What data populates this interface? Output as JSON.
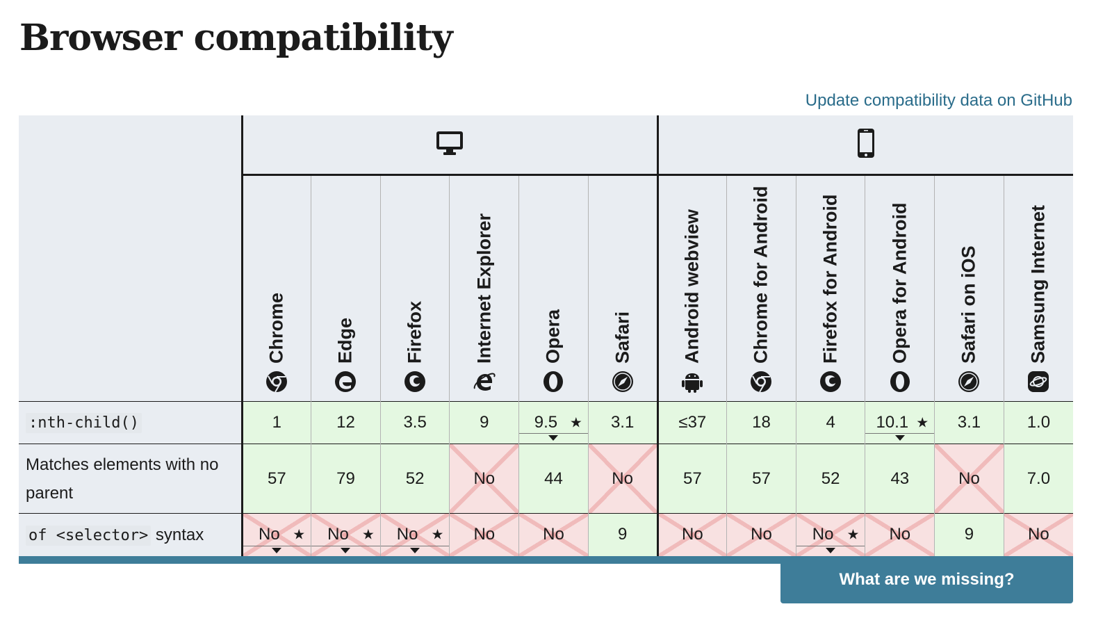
{
  "page_title": "Browser compatibility",
  "github_link": "Update compatibility data on GitHub",
  "platforms": [
    {
      "name": "desktop",
      "icon": "desktop-icon"
    },
    {
      "name": "mobile",
      "icon": "mobile-icon"
    }
  ],
  "browsers": [
    {
      "name": "Chrome",
      "icon": "chrome-icon"
    },
    {
      "name": "Edge",
      "icon": "edge-icon"
    },
    {
      "name": "Firefox",
      "icon": "firefox-icon"
    },
    {
      "name": "Internet Explorer",
      "icon": "ie-icon"
    },
    {
      "name": "Opera",
      "icon": "opera-icon"
    },
    {
      "name": "Safari",
      "icon": "safari-icon"
    },
    {
      "name": "Android webview",
      "icon": "android-icon"
    },
    {
      "name": "Chrome for Android",
      "icon": "chrome-icon"
    },
    {
      "name": "Firefox for Android",
      "icon": "firefox-icon"
    },
    {
      "name": "Opera for Android",
      "icon": "opera-icon"
    },
    {
      "name": "Safari on iOS",
      "icon": "safari-icon"
    },
    {
      "name": "Samsung Internet",
      "icon": "samsung-icon"
    }
  ],
  "rows": [
    {
      "feature_code": ":nth-child()",
      "feature_text": "",
      "cells": [
        {
          "v": "1",
          "s": "yes"
        },
        {
          "v": "12",
          "s": "yes"
        },
        {
          "v": "3.5",
          "s": "yes"
        },
        {
          "v": "9",
          "s": "yes"
        },
        {
          "v": "9.5",
          "s": "yes",
          "star": "★",
          "toggle": true
        },
        {
          "v": "3.1",
          "s": "yes"
        },
        {
          "v": "≤37",
          "s": "yes"
        },
        {
          "v": "18",
          "s": "yes"
        },
        {
          "v": "4",
          "s": "yes"
        },
        {
          "v": "10.1",
          "s": "yes",
          "star": "★",
          "toggle": true
        },
        {
          "v": "3.1",
          "s": "yes"
        },
        {
          "v": "1.0",
          "s": "yes"
        }
      ]
    },
    {
      "feature_code": "",
      "feature_text": "Matches elements with no parent",
      "cells": [
        {
          "v": "57",
          "s": "yes"
        },
        {
          "v": "79",
          "s": "yes"
        },
        {
          "v": "52",
          "s": "yes"
        },
        {
          "v": "No",
          "s": "no"
        },
        {
          "v": "44",
          "s": "yes"
        },
        {
          "v": "No",
          "s": "no"
        },
        {
          "v": "57",
          "s": "yes"
        },
        {
          "v": "57",
          "s": "yes"
        },
        {
          "v": "52",
          "s": "yes"
        },
        {
          "v": "43",
          "s": "yes"
        },
        {
          "v": "No",
          "s": "no"
        },
        {
          "v": "7.0",
          "s": "yes"
        }
      ]
    },
    {
      "feature_code": "of <selector>",
      "feature_text": " syntax",
      "cells": [
        {
          "v": "No",
          "s": "no",
          "star": "★",
          "toggle": true
        },
        {
          "v": "No",
          "s": "no",
          "star": "★",
          "toggle": true
        },
        {
          "v": "No",
          "s": "no",
          "star": "★",
          "toggle": true
        },
        {
          "v": "No",
          "s": "no"
        },
        {
          "v": "No",
          "s": "no"
        },
        {
          "v": "9",
          "s": "yes"
        },
        {
          "v": "No",
          "s": "no"
        },
        {
          "v": "No",
          "s": "no"
        },
        {
          "v": "No",
          "s": "no",
          "star": "★",
          "toggle": true
        },
        {
          "v": "No",
          "s": "no"
        },
        {
          "v": "9",
          "s": "yes"
        },
        {
          "v": "No",
          "s": "no"
        }
      ]
    }
  ],
  "feedback_button": "What are we missing?",
  "colors": {
    "supported": "#e4f8e1",
    "unsupported": "#f8e1e1",
    "accent": "#3e7d99",
    "link": "#2a6c8a"
  }
}
